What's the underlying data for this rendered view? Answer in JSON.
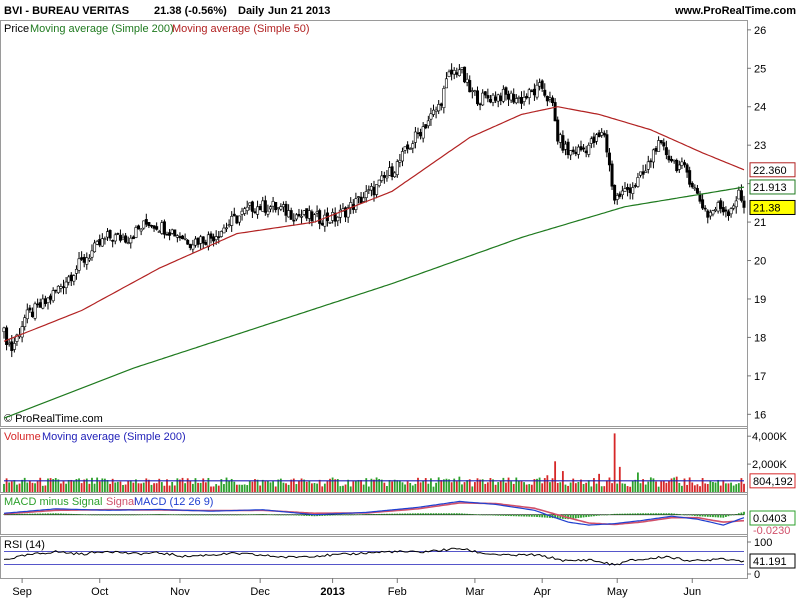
{
  "header": {
    "title": "BVI - BUREAU VERITAS",
    "quote": "21.38 (-0.56%)",
    "period": "Daily",
    "date": "Jun 21 2013",
    "site": "www.ProRealTime.com",
    "watermark": "© ProRealTime.com"
  },
  "colors": {
    "ma200": "#1f7a1f",
    "ma50": "#b22222",
    "volume_ma": "#1f1fb8",
    "up_volume": "#2ca02c",
    "down_volume": "#d62728",
    "macd_hist": "#2ca02c",
    "signal": "#d0506a",
    "macd": "#1f3fd0",
    "price_badge": "#ffff00",
    "grid": "#e6e6e6"
  },
  "chart_data": [
    {
      "type": "candlestick",
      "panel": "price",
      "legend": {
        "price": "Price",
        "ma200": "Moving average (Simple 200)",
        "ma50": "Moving average (Simple 50)"
      },
      "x_months": [
        "Sep",
        "Oct",
        "Nov",
        "Dec",
        "2013",
        "Feb",
        "Mar",
        "Apr",
        "May",
        "Jun"
      ],
      "y_ticks": [
        16,
        17,
        18,
        19,
        20,
        21,
        22,
        23,
        24,
        25,
        26
      ],
      "ylim": [
        15.8,
        26.1
      ],
      "price_labels": {
        "ma50": "22.360",
        "ma200": "21.913",
        "last": "21.38"
      },
      "close_anchors": [
        [
          0,
          18.1
        ],
        [
          3,
          17.7
        ],
        [
          8,
          18.5
        ],
        [
          16,
          18.9
        ],
        [
          24,
          19.5
        ],
        [
          32,
          20.1
        ],
        [
          40,
          20.6
        ],
        [
          48,
          20.6
        ],
        [
          56,
          21.0
        ],
        [
          64,
          20.8
        ],
        [
          72,
          20.5
        ],
        [
          80,
          20.6
        ],
        [
          88,
          21.0
        ],
        [
          96,
          21.4
        ],
        [
          104,
          21.4
        ],
        [
          112,
          21.2
        ],
        [
          120,
          21.1
        ],
        [
          128,
          21.1
        ],
        [
          136,
          21.5
        ],
        [
          144,
          21.9
        ],
        [
          152,
          22.5
        ],
        [
          160,
          23.3
        ],
        [
          168,
          24.0
        ],
        [
          172,
          24.8
        ],
        [
          176,
          25.0
        ],
        [
          180,
          24.4
        ],
        [
          184,
          24.2
        ],
        [
          192,
          24.3
        ],
        [
          200,
          24.2
        ],
        [
          208,
          24.5
        ],
        [
          212,
          24.0
        ],
        [
          214,
          23.2
        ],
        [
          218,
          22.8
        ],
        [
          224,
          22.9
        ],
        [
          232,
          23.3
        ],
        [
          236,
          21.6
        ],
        [
          240,
          21.8
        ],
        [
          244,
          22.0
        ],
        [
          248,
          22.3
        ],
        [
          252,
          23.0
        ],
        [
          256,
          22.8
        ],
        [
          260,
          22.5
        ],
        [
          264,
          22.3
        ],
        [
          268,
          21.7
        ],
        [
          272,
          21.2
        ],
        [
          276,
          21.4
        ],
        [
          280,
          21.3
        ],
        [
          284,
          21.7
        ],
        [
          286,
          21.4
        ]
      ],
      "ma50_anchors": [
        [
          0,
          17.9
        ],
        [
          30,
          18.7
        ],
        [
          60,
          19.8
        ],
        [
          90,
          20.7
        ],
        [
          120,
          21.0
        ],
        [
          150,
          21.8
        ],
        [
          180,
          23.2
        ],
        [
          200,
          23.8
        ],
        [
          214,
          24.0
        ],
        [
          230,
          23.8
        ],
        [
          250,
          23.4
        ],
        [
          270,
          22.8
        ],
        [
          286,
          22.36
        ]
      ],
      "ma200_anchors": [
        [
          0,
          15.9
        ],
        [
          50,
          17.2
        ],
        [
          100,
          18.3
        ],
        [
          150,
          19.4
        ],
        [
          200,
          20.6
        ],
        [
          240,
          21.4
        ],
        [
          286,
          21.91
        ]
      ]
    },
    {
      "type": "bar",
      "panel": "volume",
      "legend": {
        "volume": "Volume",
        "ma": "Moving average (Simple 200)"
      },
      "y_ticks": [
        "2,000K",
        "4,000K"
      ],
      "ylim": [
        0,
        4300
      ],
      "last_label": "804,192",
      "ma_value": 800,
      "base_volume": 750,
      "spikes": [
        [
          168,
          1050
        ],
        [
          176,
          1100
        ],
        [
          210,
          1200
        ],
        [
          213,
          2200
        ],
        [
          216,
          1500
        ],
        [
          230,
          1300
        ],
        [
          236,
          4200
        ],
        [
          238,
          1800
        ],
        [
          245,
          1400
        ],
        [
          260,
          1100
        ]
      ]
    },
    {
      "type": "line",
      "panel": "macd",
      "legend": {
        "histogram": "MACD minus Signal",
        "signal": "Signal",
        "macd": "MACD (12 26 9)"
      },
      "value_labels": [
        "0.0403",
        "-0.0230"
      ],
      "macd_anchors": [
        [
          0,
          0.05
        ],
        [
          20,
          0.2
        ],
        [
          40,
          0.15
        ],
        [
          60,
          0.18
        ],
        [
          80,
          0.12
        ],
        [
          100,
          0.17
        ],
        [
          120,
          0.0
        ],
        [
          140,
          0.08
        ],
        [
          160,
          0.25
        ],
        [
          176,
          0.45
        ],
        [
          190,
          0.35
        ],
        [
          205,
          0.15
        ],
        [
          218,
          -0.25
        ],
        [
          226,
          -0.35
        ],
        [
          236,
          -0.3
        ],
        [
          246,
          -0.2
        ],
        [
          258,
          -0.05
        ],
        [
          268,
          -0.15
        ],
        [
          278,
          -0.35
        ],
        [
          286,
          -0.1
        ]
      ],
      "signal_anchors": [
        [
          0,
          0.03
        ],
        [
          20,
          0.15
        ],
        [
          40,
          0.17
        ],
        [
          60,
          0.16
        ],
        [
          80,
          0.14
        ],
        [
          100,
          0.15
        ],
        [
          120,
          0.05
        ],
        [
          140,
          0.06
        ],
        [
          160,
          0.2
        ],
        [
          176,
          0.4
        ],
        [
          190,
          0.38
        ],
        [
          205,
          0.22
        ],
        [
          218,
          -0.1
        ],
        [
          226,
          -0.28
        ],
        [
          236,
          -0.33
        ],
        [
          246,
          -0.25
        ],
        [
          258,
          -0.1
        ],
        [
          268,
          -0.1
        ],
        [
          278,
          -0.25
        ],
        [
          286,
          -0.2
        ]
      ],
      "ylim": [
        -0.55,
        0.6
      ]
    },
    {
      "type": "line",
      "panel": "rsi",
      "legend": {
        "rsi": "RSI (14)"
      },
      "y_ticks": [
        0,
        100
      ],
      "ref_levels": [
        30,
        70
      ],
      "last_label": "41.191",
      "ylim": [
        0,
        100
      ],
      "rsi_anchors": [
        [
          0,
          45
        ],
        [
          10,
          60
        ],
        [
          20,
          70
        ],
        [
          30,
          62
        ],
        [
          40,
          72
        ],
        [
          50,
          63
        ],
        [
          60,
          66
        ],
        [
          70,
          55
        ],
        [
          80,
          60
        ],
        [
          90,
          64
        ],
        [
          100,
          58
        ],
        [
          110,
          52
        ],
        [
          120,
          57
        ],
        [
          130,
          60
        ],
        [
          140,
          66
        ],
        [
          150,
          70
        ],
        [
          160,
          68
        ],
        [
          170,
          75
        ],
        [
          176,
          80
        ],
        [
          185,
          65
        ],
        [
          195,
          58
        ],
        [
          205,
          60
        ],
        [
          212,
          50
        ],
        [
          218,
          40
        ],
        [
          226,
          45
        ],
        [
          236,
          28
        ],
        [
          242,
          42
        ],
        [
          250,
          48
        ],
        [
          256,
          55
        ],
        [
          262,
          45
        ],
        [
          270,
          40
        ],
        [
          276,
          50
        ],
        [
          282,
          44
        ],
        [
          286,
          41
        ]
      ]
    }
  ]
}
